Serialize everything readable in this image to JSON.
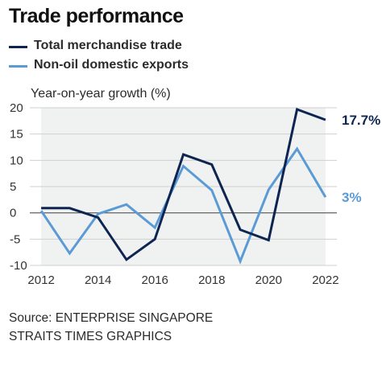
{
  "title": "Trade performance",
  "legend": [
    {
      "label": "Total merchandise trade",
      "color": "#0d2550"
    },
    {
      "label": "Non-oil domestic exports",
      "color": "#5b9bd5"
    }
  ],
  "source_line1": "Source: ENTERPRISE SINGAPORE",
  "source_line2": "STRAITS TIMES GRAPHICS",
  "chart_data": {
    "type": "line",
    "title": "Trade performance",
    "ylabel": "Year-on-year growth (%)",
    "xlabel": "",
    "x": [
      2012,
      2013,
      2014,
      2015,
      2016,
      2017,
      2018,
      2019,
      2020,
      2021,
      2022
    ],
    "xticks": [
      2012,
      2014,
      2016,
      2018,
      2020,
      2022
    ],
    "yticks": [
      20,
      15,
      10,
      5,
      0,
      -5,
      -10
    ],
    "xlim": [
      2011.6,
      2022.4
    ],
    "ylim": [
      -10,
      20
    ],
    "grid": "horizontal",
    "shading": {
      "color": "#f0f1f1",
      "x_from": 2012,
      "x_to": 2022
    },
    "series": [
      {
        "name": "Total merchandise trade",
        "color": "#0d2550",
        "values": [
          0.9,
          0.9,
          -0.9,
          -8.9,
          -5.0,
          11.1,
          9.2,
          -3.2,
          -5.2,
          19.7,
          17.7
        ],
        "end_label": "17.7%"
      },
      {
        "name": "Non-oil domestic exports",
        "color": "#5b9bd5",
        "values": [
          0.4,
          -7.7,
          -0.2,
          1.6,
          -2.8,
          8.9,
          4.3,
          -9.2,
          4.4,
          12.2,
          3.0
        ],
        "end_label": "3%"
      }
    ]
  }
}
